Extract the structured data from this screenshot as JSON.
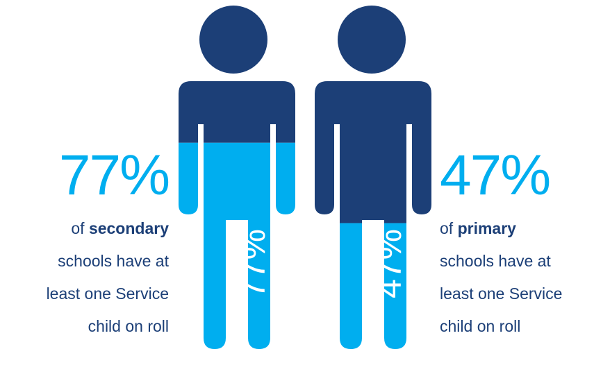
{
  "colors": {
    "light": "#00aeef",
    "dark": "#1c3f77",
    "accent_text": "#00aeef",
    "body_text": "#1c3f77"
  },
  "stats": [
    {
      "value": "77%",
      "prefix": "of",
      "emphasis": "secondary",
      "lines": [
        "schools have at",
        "least one Service",
        "child on roll"
      ]
    },
    {
      "value": "47%",
      "prefix": "of",
      "emphasis": "primary",
      "lines": [
        "schools have at",
        "least one Service",
        "child on roll"
      ]
    }
  ],
  "chart_data": {
    "type": "pictograph",
    "categories": [
      "secondary",
      "primary"
    ],
    "values": [
      77,
      47
    ],
    "unit": "%",
    "data_labels": [
      "77%",
      "47%"
    ]
  }
}
